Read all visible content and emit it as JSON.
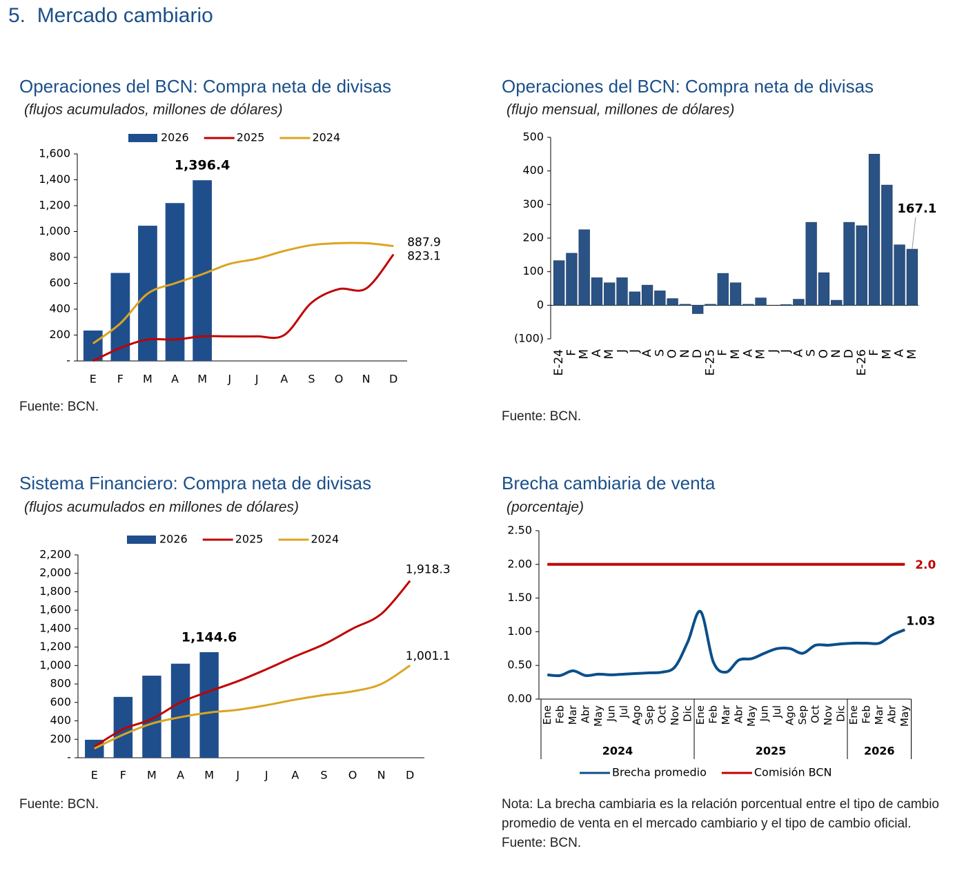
{
  "title": "5.  Mercado cambiario",
  "chart_data": [
    {
      "type": "combo",
      "title": "Operaciones del BCN: Compra neta de divisas",
      "subtitle": "(flujos acumulados, millones de dólares)",
      "categories": [
        "E",
        "F",
        "M",
        "A",
        "M",
        "J",
        "J",
        "A",
        "S",
        "O",
        "N",
        "D"
      ],
      "series": [
        {
          "name": "2026",
          "type": "bar",
          "color": "#1f4e8c",
          "values": [
            235,
            680,
            1045,
            1220,
            1396.4,
            null,
            null,
            null,
            null,
            null,
            null,
            null
          ],
          "value_labels": [
            null,
            null,
            null,
            null,
            "1,396.4",
            null,
            null,
            null,
            null,
            null,
            null,
            null
          ]
        },
        {
          "name": "2025",
          "type": "line",
          "color": "#c00000",
          "values": [
            0,
            100,
            165,
            165,
            190,
            190,
            190,
            200,
            450,
            555,
            560,
            823.1
          ],
          "value_labels": [
            null,
            null,
            null,
            null,
            null,
            null,
            null,
            null,
            null,
            null,
            null,
            "823.1"
          ]
        },
        {
          "name": "2024",
          "type": "line",
          "color": "#dba520",
          "values": [
            135,
            290,
            520,
            600,
            670,
            750,
            790,
            850,
            895,
            910,
            910,
            887.9
          ],
          "value_labels": [
            null,
            null,
            null,
            null,
            null,
            null,
            null,
            null,
            null,
            null,
            null,
            "887.9"
          ]
        }
      ],
      "ylim": [
        0,
        1600
      ],
      "yticks": [
        {
          "value": 0,
          "label": "-"
        },
        200,
        400,
        600,
        800,
        {
          "value": 1000,
          "label": "1,000"
        },
        {
          "value": 1200,
          "label": "1,200"
        },
        {
          "value": 1400,
          "label": "1,400"
        },
        {
          "value": 1600,
          "label": "1,600"
        }
      ],
      "grid": false,
      "legend": "top",
      "source": "Fuente: BCN."
    },
    {
      "type": "bar",
      "title": "Operaciones del BCN: Compra neta de divisas",
      "subtitle": "(flujo mensual, millones de dólares)",
      "categories": [
        "E-24",
        "F",
        "M",
        "A",
        "M",
        "J",
        "J",
        "A",
        "S",
        "O",
        "N",
        "D",
        "E-25",
        "F",
        "M",
        "A",
        "M",
        "J",
        "J",
        "A",
        "S",
        "O",
        "N",
        "D",
        "E-26",
        "F",
        "M",
        "A",
        "M"
      ],
      "values": [
        133,
        155,
        225,
        82,
        67,
        82,
        40,
        60,
        43,
        20,
        3,
        -25,
        3,
        95,
        67,
        3,
        22,
        0,
        2,
        18,
        247,
        97,
        15,
        247,
        237,
        450,
        358,
        180,
        167.1
      ],
      "value_labels": [
        null,
        null,
        null,
        null,
        null,
        null,
        null,
        null,
        null,
        null,
        null,
        null,
        null,
        null,
        null,
        null,
        null,
        null,
        null,
        null,
        null,
        null,
        null,
        null,
        null,
        null,
        null,
        null,
        "167.1"
      ],
      "color": "#2a5284",
      "ylim": [
        -100,
        500
      ],
      "yticks": [
        {
          "value": -100,
          "label": "(100)"
        },
        0,
        100,
        200,
        300,
        400,
        500
      ],
      "grid": false,
      "source": "Fuente: BCN."
    },
    {
      "type": "combo",
      "title": "Sistema Financiero: Compra neta de divisas",
      "subtitle": "(flujos acumulados en millones de dólares)",
      "categories": [
        "E",
        "F",
        "M",
        "A",
        "M",
        "J",
        "J",
        "A",
        "S",
        "O",
        "N",
        "D"
      ],
      "series": [
        {
          "name": "2026",
          "type": "bar",
          "color": "#1f4e8c",
          "values": [
            195,
            660,
            890,
            1020,
            1144.6,
            null,
            null,
            null,
            null,
            null,
            null,
            null
          ],
          "value_labels": [
            null,
            null,
            null,
            null,
            "1,144.6",
            null,
            null,
            null,
            null,
            null,
            null,
            null
          ]
        },
        {
          "name": "2025",
          "type": "line",
          "color": "#c00000",
          "values": [
            120,
            310,
            420,
            600,
            720,
            830,
            960,
            1100,
            1230,
            1400,
            1560,
            1918.3
          ],
          "value_labels": [
            null,
            null,
            null,
            null,
            null,
            null,
            null,
            null,
            null,
            null,
            null,
            "1,918.3"
          ]
        },
        {
          "name": "2024",
          "type": "line",
          "color": "#dba520",
          "values": [
            100,
            250,
            370,
            440,
            490,
            520,
            570,
            630,
            680,
            720,
            800,
            1001.1
          ],
          "value_labels": [
            null,
            null,
            null,
            null,
            null,
            null,
            null,
            null,
            null,
            null,
            null,
            "1,001.1"
          ]
        }
      ],
      "ylim": [
        0,
        2200
      ],
      "yticks": [
        {
          "value": 0,
          "label": "-"
        },
        200,
        400,
        600,
        800,
        {
          "value": 1000,
          "label": "1,000"
        },
        {
          "value": 1200,
          "label": "1,200"
        },
        {
          "value": 1400,
          "label": "1,400"
        },
        {
          "value": 1600,
          "label": "1,600"
        },
        {
          "value": 1800,
          "label": "1,800"
        },
        {
          "value": 2000,
          "label": "2,000"
        },
        {
          "value": 2200,
          "label": "2,200"
        }
      ],
      "grid": false,
      "legend": "top",
      "source": "Fuente: BCN."
    },
    {
      "type": "line",
      "title": "Brecha cambiaria de venta",
      "subtitle": "(porcentaje)",
      "category_groups": [
        {
          "name": "2024",
          "categories": [
            "Ene",
            "Feb",
            "Mar",
            "Abr",
            "May",
            "Jun",
            "Jul",
            "Ago",
            "Sep",
            "Oct",
            "Nov",
            "Dic"
          ]
        },
        {
          "name": "2025",
          "categories": [
            "Ene",
            "Feb",
            "Mar",
            "Abr",
            "May",
            "Jun",
            "Jul",
            "Ago",
            "Sep",
            "Oct",
            "Nov",
            "Dic"
          ]
        },
        {
          "name": "2026",
          "categories": [
            "Ene",
            "Feb",
            "Mar",
            "Abr",
            "May"
          ]
        }
      ],
      "series": [
        {
          "name": "Brecha promedio",
          "color": "#0b4f8a",
          "values": [
            0.36,
            0.35,
            0.42,
            0.35,
            0.37,
            0.36,
            0.37,
            0.38,
            0.39,
            0.4,
            0.48,
            0.85,
            1.3,
            0.55,
            0.4,
            0.58,
            0.6,
            0.68,
            0.75,
            0.75,
            0.68,
            0.8,
            0.8,
            0.82,
            0.83,
            0.83,
            0.83,
            0.95,
            1.03
          ],
          "value_labels": [
            null,
            null,
            null,
            null,
            null,
            null,
            null,
            null,
            null,
            null,
            null,
            null,
            null,
            null,
            null,
            null,
            null,
            null,
            null,
            null,
            null,
            null,
            null,
            null,
            null,
            null,
            null,
            null,
            "1.03"
          ]
        },
        {
          "name": "Comisión BCN",
          "color": "#c00000",
          "values": [
            2,
            2,
            2,
            2,
            2,
            2,
            2,
            2,
            2,
            2,
            2,
            2,
            2,
            2,
            2,
            2,
            2,
            2,
            2,
            2,
            2,
            2,
            2,
            2,
            2,
            2,
            2,
            2,
            2
          ],
          "value_labels": [
            null,
            null,
            null,
            null,
            null,
            null,
            null,
            null,
            null,
            null,
            null,
            null,
            null,
            null,
            null,
            null,
            null,
            null,
            null,
            null,
            null,
            null,
            null,
            null,
            null,
            null,
            null,
            null,
            "2.0"
          ]
        }
      ],
      "ylim": [
        0,
        2.5
      ],
      "yticks": [
        {
          "value": 0,
          "label": "0.00"
        },
        {
          "value": 0.5,
          "label": "0.50"
        },
        {
          "value": 1,
          "label": "1.00"
        },
        {
          "value": 1.5,
          "label": "1.50"
        },
        {
          "value": 2,
          "label": "2.00"
        },
        {
          "value": 2.5,
          "label": "2.50"
        }
      ],
      "grid": false,
      "legend": "bottom",
      "note": "Nota: La brecha cambiaria es la relación porcentual entre el tipo de cambio promedio de venta en el mercado cambiario y el tipo de cambio oficial.",
      "source": "Fuente: BCN."
    }
  ]
}
